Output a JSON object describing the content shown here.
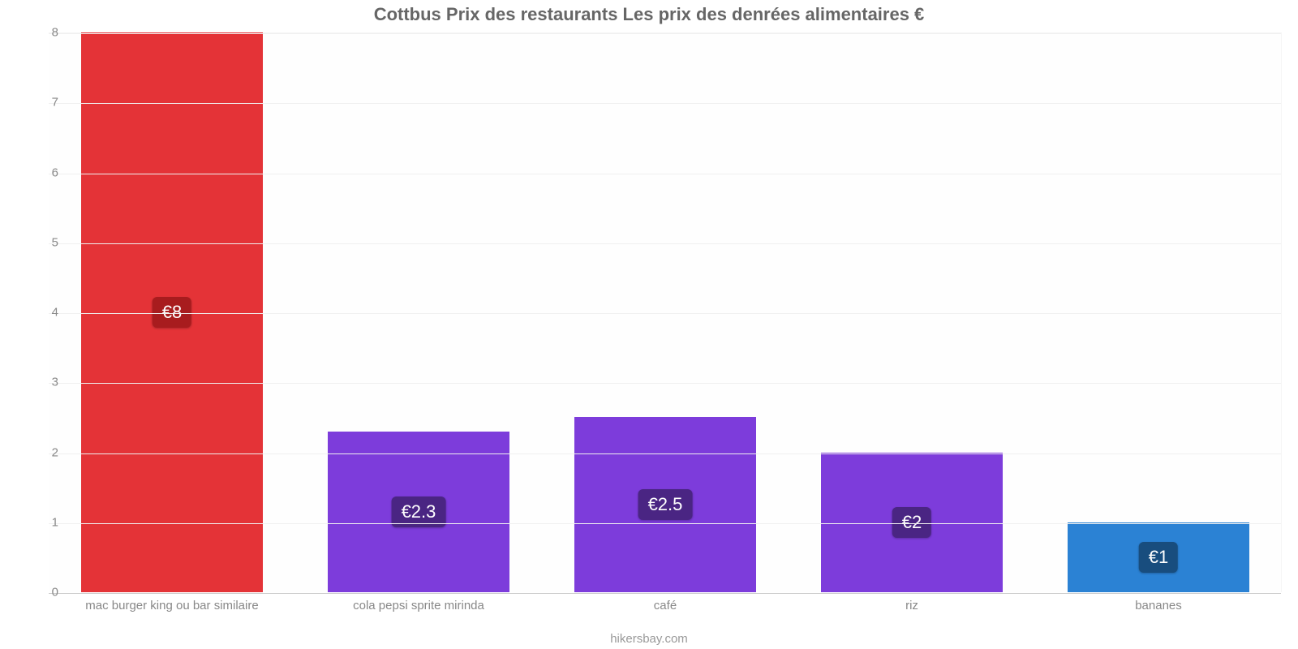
{
  "chart": {
    "type": "bar",
    "title": "Cottbus Prix des restaurants Les prix des denrées alimentaires €",
    "title_color": "#666666",
    "title_fontsize": 22,
    "attribution": "hikersbay.com",
    "attribution_color": "#999999",
    "attribution_fontsize": 15,
    "background_color": "#ffffff",
    "plot_background": "#fefefe",
    "grid_color": "#f0f0f0",
    "baseline_color": "#cccccc",
    "ylim": [
      0,
      8
    ],
    "ytick_step": 1,
    "yticks": [
      0,
      1,
      2,
      3,
      4,
      5,
      6,
      7,
      8
    ],
    "ytick_color": "#888888",
    "ytick_fontsize": 15,
    "xlabel_color": "#888888",
    "xlabel_fontsize": 15,
    "bar_width": 0.74,
    "slot_count": 5,
    "data_label_fontsize": 22,
    "bars": [
      {
        "category": "mac burger king ou bar similaire",
        "value": 8,
        "value_label": "€8",
        "fill": "#e43337",
        "badge_bg": "#a81c1e"
      },
      {
        "category": "cola pepsi sprite mirinda",
        "value": 2.3,
        "value_label": "€2.3",
        "fill": "#7d3cdb",
        "badge_bg": "#4a2583"
      },
      {
        "category": "café",
        "value": 2.5,
        "value_label": "€2.5",
        "fill": "#7d3cdb",
        "badge_bg": "#4a2583"
      },
      {
        "category": "riz",
        "value": 2,
        "value_label": "€2",
        "fill": "#7d3cdb",
        "badge_bg": "#4a2583"
      },
      {
        "category": "bananes",
        "value": 1,
        "value_label": "€1",
        "fill": "#2b82d4",
        "badge_bg": "#184d7e"
      }
    ]
  }
}
